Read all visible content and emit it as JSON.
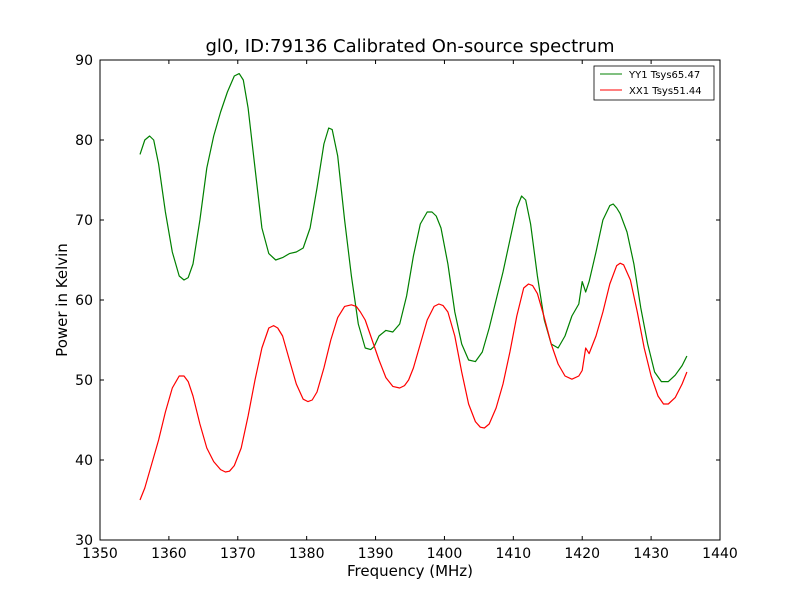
{
  "chart_data": {
    "type": "line",
    "title": "gl0, ID:79136 Calibrated On-source spectrum",
    "xlabel": "Frequency (MHz)",
    "ylabel": "Power in Kelvin",
    "xlim": [
      1350,
      1440
    ],
    "ylim": [
      30,
      90
    ],
    "xticks": [
      1350,
      1360,
      1370,
      1380,
      1390,
      1400,
      1410,
      1420,
      1430,
      1440
    ],
    "yticks": [
      30,
      40,
      50,
      60,
      70,
      80,
      90
    ],
    "grid": false,
    "legend_position": "top-right",
    "series": [
      {
        "name": "YY1 Tsys65.47",
        "color": "#008000",
        "x": [
          1355.8,
          1356.5,
          1357.2,
          1357.8,
          1358.5,
          1359.5,
          1360.5,
          1361.5,
          1362.2,
          1362.8,
          1363.5,
          1364.5,
          1365.5,
          1366.5,
          1367.5,
          1368.5,
          1369.5,
          1370.2,
          1370.8,
          1371.5,
          1372.5,
          1373.5,
          1374.5,
          1375.5,
          1376.5,
          1377.5,
          1378.5,
          1379.5,
          1380.5,
          1381.5,
          1382.5,
          1383.2,
          1383.7,
          1384.5,
          1385.5,
          1386.5,
          1387.5,
          1388.5,
          1389.3,
          1389.8,
          1390.5,
          1391.5,
          1392.5,
          1393.5,
          1394.5,
          1395.5,
          1396.5,
          1397.5,
          1398.2,
          1398.8,
          1399.5,
          1400.5,
          1401.5,
          1402.5,
          1403.5,
          1404.5,
          1405.5,
          1406.5,
          1407.5,
          1408.5,
          1409.5,
          1410.5,
          1411.2,
          1411.8,
          1412.5,
          1413.5,
          1414.5,
          1415.5,
          1416.5,
          1417.5,
          1418.5,
          1419.5,
          1420.0,
          1420.5,
          1421.0,
          1422.0,
          1423.0,
          1424.0,
          1424.5,
          1425.0,
          1425.5,
          1426.5,
          1427.5,
          1428.5,
          1429.5,
          1430.5,
          1431.5,
          1432.5,
          1433.5,
          1434.5,
          1435.2
        ],
        "y": [
          78.2,
          80.0,
          80.5,
          80.0,
          77.0,
          71.0,
          66.0,
          63.0,
          62.5,
          62.8,
          64.5,
          70.0,
          76.5,
          80.5,
          83.5,
          86.0,
          88.0,
          88.3,
          87.5,
          84.0,
          76.5,
          69.0,
          65.8,
          65.0,
          65.3,
          65.8,
          66.0,
          66.5,
          69.0,
          74.0,
          79.5,
          81.5,
          81.3,
          78.0,
          70.0,
          63.0,
          57.0,
          54.0,
          53.8,
          54.2,
          55.5,
          56.2,
          56.0,
          57.0,
          60.5,
          65.5,
          69.5,
          71.0,
          71.0,
          70.5,
          69.0,
          64.5,
          58.5,
          54.5,
          52.5,
          52.3,
          53.5,
          56.5,
          60.0,
          63.5,
          67.5,
          71.5,
          73.0,
          72.5,
          69.5,
          63.0,
          57.5,
          54.5,
          54.0,
          55.5,
          58.0,
          59.5,
          62.3,
          61.0,
          62.3,
          66.0,
          70.0,
          71.8,
          72.0,
          71.5,
          70.8,
          68.5,
          64.5,
          59.0,
          54.5,
          51.0,
          49.8,
          49.8,
          50.6,
          51.8,
          53.0
        ]
      },
      {
        "name": "XX1 Tsys51.44",
        "color": "#ff0000",
        "x": [
          1355.8,
          1356.5,
          1357.5,
          1358.5,
          1359.5,
          1360.5,
          1361.5,
          1362.2,
          1362.8,
          1363.5,
          1364.5,
          1365.5,
          1366.5,
          1367.5,
          1368.2,
          1368.8,
          1369.5,
          1370.5,
          1371.5,
          1372.5,
          1373.5,
          1374.5,
          1375.2,
          1375.8,
          1376.5,
          1377.5,
          1378.5,
          1379.5,
          1380.2,
          1380.8,
          1381.5,
          1382.5,
          1383.5,
          1384.5,
          1385.5,
          1386.5,
          1387.2,
          1387.8,
          1388.5,
          1389.5,
          1390.5,
          1391.5,
          1392.5,
          1393.5,
          1394.2,
          1394.8,
          1395.5,
          1396.5,
          1397.5,
          1398.5,
          1399.2,
          1399.8,
          1400.5,
          1401.5,
          1402.5,
          1403.5,
          1404.5,
          1405.2,
          1405.8,
          1406.5,
          1407.5,
          1408.5,
          1409.5,
          1410.5,
          1411.5,
          1412.2,
          1412.8,
          1413.5,
          1414.5,
          1415.5,
          1416.5,
          1417.5,
          1418.5,
          1419.5,
          1420.0,
          1420.5,
          1421.0,
          1422.0,
          1423.0,
          1424.0,
          1425.0,
          1425.5,
          1426.0,
          1427.0,
          1428.0,
          1429.0,
          1430.0,
          1431.0,
          1431.8,
          1432.5,
          1433.5,
          1434.5,
          1435.2
        ],
        "y": [
          35.0,
          36.5,
          39.5,
          42.5,
          46.0,
          49.0,
          50.5,
          50.5,
          49.8,
          48.0,
          44.5,
          41.5,
          39.8,
          38.8,
          38.5,
          38.6,
          39.3,
          41.5,
          45.5,
          50.0,
          54.0,
          56.5,
          56.8,
          56.5,
          55.5,
          52.5,
          49.5,
          47.6,
          47.3,
          47.5,
          48.5,
          51.5,
          55.0,
          57.8,
          59.2,
          59.4,
          59.2,
          58.5,
          57.5,
          55.0,
          52.5,
          50.3,
          49.2,
          49.0,
          49.3,
          50.0,
          51.5,
          54.5,
          57.5,
          59.2,
          59.5,
          59.3,
          58.5,
          55.5,
          51.0,
          47.0,
          44.8,
          44.1,
          44.0,
          44.5,
          46.5,
          49.5,
          53.5,
          58.0,
          61.5,
          62.0,
          61.8,
          60.8,
          57.8,
          54.5,
          52.0,
          50.5,
          50.1,
          50.5,
          51.2,
          54.0,
          53.3,
          55.5,
          58.5,
          62.0,
          64.3,
          64.6,
          64.4,
          62.5,
          58.5,
          54.0,
          50.5,
          48.0,
          47.0,
          47.0,
          47.8,
          49.5,
          51.0
        ]
      }
    ]
  }
}
